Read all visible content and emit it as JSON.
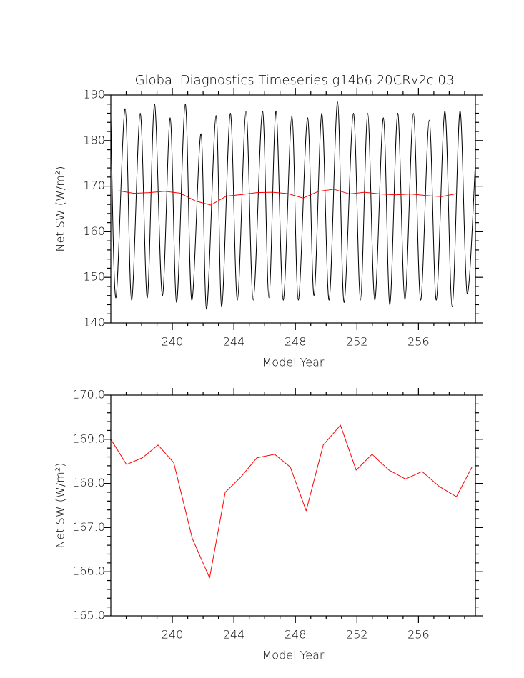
{
  "chart_data": [
    {
      "type": "line",
      "title": "Global Diagnostics Timeseries g14b6.20CRv2c.03",
      "xlabel": "Model Year",
      "ylabel": "Net SW (W/m²)",
      "xlim": [
        236,
        259.7
      ],
      "xticks": [
        240,
        244,
        248,
        252,
        256
      ],
      "xminorticks": [
        237,
        238,
        239,
        241,
        242,
        243,
        245,
        246,
        247,
        249,
        250,
        251,
        253,
        254,
        255,
        257,
        258,
        259
      ],
      "ylim": [
        140,
        190
      ],
      "yticks": [
        140,
        150,
        160,
        170,
        180,
        190
      ],
      "yminorticks": [
        142,
        144,
        146,
        148,
        152,
        154,
        156,
        158,
        162,
        164,
        166,
        168,
        172,
        174,
        176,
        178,
        182,
        184,
        186,
        188
      ],
      "series": [
        {
          "color": "#000000",
          "smooth": true,
          "x": [
            236,
            236.33,
            236.93,
            237.35,
            237.91,
            238.37,
            238.84,
            239.35,
            239.86,
            240.28,
            240.84,
            241.26,
            241.86,
            242.23,
            242.84,
            243.21,
            243.77,
            244.23,
            244.79,
            245.26,
            245.86,
            246.28,
            246.74,
            247.21,
            247.77,
            248.19,
            248.79,
            249.21,
            249.72,
            250.19,
            250.74,
            251.16,
            251.77,
            252.23,
            252.7,
            253.16,
            253.72,
            254.14,
            254.65,
            255.12,
            255.67,
            256.14,
            256.7,
            257.16,
            257.72,
            258.19,
            258.7,
            259.16,
            259.7
          ],
          "values": [
            185,
            145.5,
            187,
            145,
            186,
            145.5,
            188,
            146,
            185,
            144.5,
            188,
            145,
            181.5,
            143,
            185.5,
            143.5,
            186,
            145,
            186.5,
            145,
            186.5,
            145.5,
            186.5,
            145,
            185.5,
            145,
            185,
            146,
            186,
            145,
            188.5,
            144.5,
            186,
            145,
            186,
            145,
            185,
            144,
            186,
            145,
            186,
            145,
            184.5,
            145,
            186.5,
            143.5,
            186.5,
            146.5,
            175
          ]
        },
        {
          "color": "#ff0000",
          "smooth": false,
          "x": [
            236.5,
            237.5,
            238.5,
            239.5,
            240.5,
            241.5,
            242.5,
            243.5,
            244.5,
            245.5,
            246.5,
            247.5,
            248.5,
            249.5,
            250.5,
            251.5,
            252.5,
            253.5,
            254.5,
            255.5,
            256.5,
            257.5,
            258.5
          ],
          "values": [
            169.0,
            168.43,
            168.58,
            168.87,
            168.47,
            166.75,
            165.86,
            167.8,
            168.15,
            168.58,
            168.66,
            168.37,
            167.38,
            168.87,
            169.32,
            168.3,
            168.66,
            168.3,
            168.1,
            168.27,
            167.93,
            167.7,
            168.38
          ]
        }
      ]
    },
    {
      "type": "line",
      "xlabel": "Model Year",
      "ylabel": "Net SW (W/m²)",
      "xlim": [
        236,
        259.7
      ],
      "xticks": [
        240,
        244,
        248,
        252,
        256
      ],
      "xminorticks": [
        237,
        238,
        239,
        241,
        242,
        243,
        245,
        246,
        247,
        249,
        250,
        251,
        253,
        254,
        255,
        257,
        258,
        259
      ],
      "ylim": [
        165,
        170
      ],
      "yticks": [
        {
          "value": 165,
          "label": "165.0"
        },
        {
          "value": 166,
          "label": "166.0"
        },
        {
          "value": 167,
          "label": "167.0"
        },
        {
          "value": 168,
          "label": "168.0"
        },
        {
          "value": 169,
          "label": "169.0"
        },
        {
          "value": 170,
          "label": "170.0"
        }
      ],
      "yminorticks": [
        165.2,
        165.4,
        165.6,
        165.8,
        166.2,
        166.4,
        166.6,
        166.8,
        167.2,
        167.4,
        167.6,
        167.8,
        168.2,
        168.4,
        168.6,
        168.8,
        169.2,
        169.4,
        169.6,
        169.8
      ],
      "series": [
        {
          "color": "#ff0000",
          "smooth": false,
          "x": [
            236,
            237.02,
            238.05,
            239.07,
            240.09,
            241.3,
            242.42,
            243.44,
            244.47,
            245.49,
            246.65,
            247.67,
            248.7,
            249.81,
            250.93,
            251.95,
            252.98,
            254.09,
            255.16,
            256.23,
            257.35,
            258.47,
            259.49
          ],
          "values": [
            169.0,
            168.43,
            168.58,
            168.87,
            168.47,
            166.75,
            165.86,
            167.8,
            168.15,
            168.58,
            168.66,
            168.37,
            167.38,
            168.87,
            169.32,
            168.3,
            168.66,
            168.3,
            168.1,
            168.27,
            167.93,
            167.7,
            168.38
          ]
        }
      ]
    }
  ]
}
